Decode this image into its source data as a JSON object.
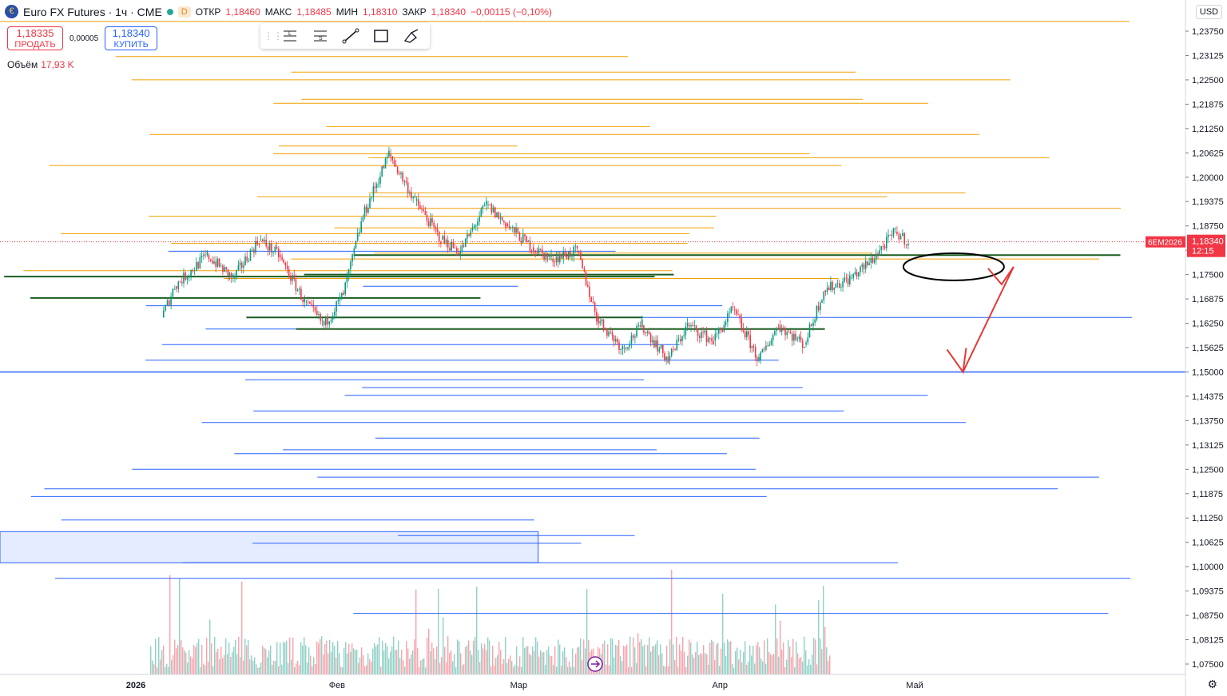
{
  "header": {
    "symbol_title": "Euro FX Futures · 1ч · CME",
    "badge": "D",
    "ohlc": [
      {
        "k": "ОТКР",
        "v": "1,18460"
      },
      {
        "k": "МАКС",
        "v": "1,18485"
      },
      {
        "k": "МИН",
        "v": "1,18310"
      },
      {
        "k": "ЗАКР",
        "v": "1,18340"
      }
    ],
    "change": "−0,00115 (−0,10%)"
  },
  "trade": {
    "sell_price": "1,18335",
    "sell_label": "ПРОДАТЬ",
    "spread": "0,00005",
    "buy_price": "1,18340",
    "buy_label": "КУПИТЬ"
  },
  "volume": {
    "label": "Объём",
    "value": "17,93 K"
  },
  "currency": "USD",
  "toolbar": {
    "icons": [
      "long-position-icon",
      "short-position-icon",
      "trend-line-icon",
      "rectangle-icon",
      "brush-icon"
    ]
  },
  "colors": {
    "up": "#089981",
    "down": "#f23645",
    "orange": "#f0a000",
    "blue": "#2962ff",
    "dark_green": "#1b5e20"
  },
  "chart_data": {
    "type": "candlestick",
    "title": "Euro FX Futures · 1ч · CME",
    "ylim": [
      1.0725,
      1.2406
    ],
    "y_ticks": [
      "1,23750",
      "1,23125",
      "1,22500",
      "1,21875",
      "1,21250",
      "1,20625",
      "1,20000",
      "1,19375",
      "1,18750",
      "1,18125",
      "1,17500",
      "1,16875",
      "1,16250",
      "1,15625",
      "1,15000",
      "1,14375",
      "1,13750",
      "1,13125",
      "1,12500",
      "1,11875",
      "1,11250",
      "1,10625",
      "1,10000",
      "1,09375",
      "1,08750",
      "1,08125",
      "1,07500"
    ],
    "x_ticks": [
      "2026",
      "Фев",
      "Мар",
      "Апр",
      "Май"
    ],
    "last_price": {
      "symbol": "6EM2026",
      "value": "1,18340",
      "countdown": "12:15"
    },
    "price_path": [
      {
        "t": "2026-01-05",
        "p": 1.164
      },
      {
        "t": "2026-01-07",
        "p": 1.172
      },
      {
        "t": "2026-01-12",
        "p": 1.18
      },
      {
        "t": "2026-01-16",
        "p": 1.174
      },
      {
        "t": "2026-01-20",
        "p": 1.184
      },
      {
        "t": "2026-01-23",
        "p": 1.18
      },
      {
        "t": "2026-01-27",
        "p": 1.168
      },
      {
        "t": "2026-01-30",
        "p": 1.162
      },
      {
        "t": "2026-02-02",
        "p": 1.17
      },
      {
        "t": "2026-02-05",
        "p": 1.19
      },
      {
        "t": "2026-02-09",
        "p": 1.206
      },
      {
        "t": "2026-02-13",
        "p": 1.194
      },
      {
        "t": "2026-02-17",
        "p": 1.184
      },
      {
        "t": "2026-02-20",
        "p": 1.181
      },
      {
        "t": "2026-02-24",
        "p": 1.193
      },
      {
        "t": "2026-02-27",
        "p": 1.188
      },
      {
        "t": "2026-03-03",
        "p": 1.182
      },
      {
        "t": "2026-03-06",
        "p": 1.179
      },
      {
        "t": "2026-03-10",
        "p": 1.181
      },
      {
        "t": "2026-03-13",
        "p": 1.164
      },
      {
        "t": "2026-03-17",
        "p": 1.156
      },
      {
        "t": "2026-03-20",
        "p": 1.162
      },
      {
        "t": "2026-03-24",
        "p": 1.153
      },
      {
        "t": "2026-03-27",
        "p": 1.162
      },
      {
        "t": "2026-03-31",
        "p": 1.158
      },
      {
        "t": "2026-04-03",
        "p": 1.166
      },
      {
        "t": "2026-04-07",
        "p": 1.153
      },
      {
        "t": "2026-04-10",
        "p": 1.162
      },
      {
        "t": "2026-04-14",
        "p": 1.157
      },
      {
        "t": "2026-04-17",
        "p": 1.171
      },
      {
        "t": "2026-04-21",
        "p": 1.174
      },
      {
        "t": "2026-04-24",
        "p": 1.178
      },
      {
        "t": "2026-04-28",
        "p": 1.186
      },
      {
        "t": "2026-04-30",
        "p": 1.1834
      }
    ],
    "levels_orange": [
      1.24,
      1.231,
      1.227,
      1.225,
      1.22,
      1.219,
      1.213,
      1.211,
      1.208,
      1.206,
      1.205,
      1.203,
      1.196,
      1.195,
      1.192,
      1.19,
      1.187,
      1.1855,
      1.183,
      1.1805,
      1.179,
      1.176,
      1.174
    ],
    "levels_blue": [
      1.181,
      1.172,
      1.167,
      1.164,
      1.161,
      1.157,
      1.153,
      1.15,
      1.148,
      1.146,
      1.144,
      1.14,
      1.137,
      1.133,
      1.13,
      1.129,
      1.125,
      1.123,
      1.12,
      1.118,
      1.112,
      1.108,
      1.106,
      1.101,
      1.097,
      1.088
    ],
    "levels_green": [
      1.18,
      1.175,
      1.1745,
      1.169,
      1.164,
      1.161
    ],
    "zone_box": {
      "from": 1.101,
      "to": 1.109,
      "t_end": "2026-03-04"
    },
    "annotation": {
      "type": "ellipse+arrow",
      "ellipse_price": 1.177,
      "arrow_target": 1.15,
      "arrow_target_time": "2026-05-05"
    }
  }
}
